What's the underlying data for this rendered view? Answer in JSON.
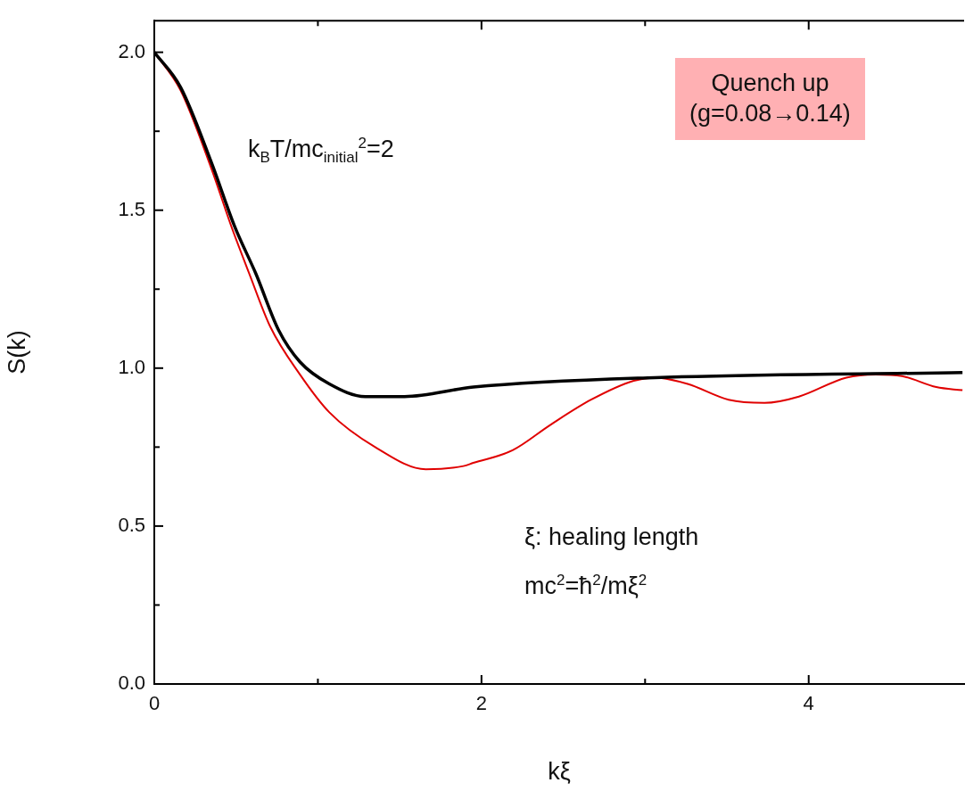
{
  "chart_data": {
    "type": "line",
    "xlabel": "kξ",
    "ylabel": "S(k)",
    "xlim": [
      0,
      4.95
    ],
    "ylim": [
      0,
      2.1
    ],
    "xticks": [
      0,
      {
        "value": 1,
        "label": null
      },
      2,
      {
        "value": 3,
        "label": null
      },
      4
    ],
    "yticks": [
      {
        "value": 0,
        "label": "0.0"
      },
      {
        "value": 0.25,
        "label": null
      },
      {
        "value": 0.5,
        "label": "0.5"
      },
      {
        "value": 0.75,
        "label": null
      },
      {
        "value": 1,
        "label": "1.0"
      },
      {
        "value": 1.25,
        "label": null
      },
      {
        "value": 1.5,
        "label": "1.5"
      },
      {
        "value": 1.75,
        "label": null
      },
      {
        "value": 2,
        "label": "2.0"
      }
    ],
    "grid": false,
    "legend": false,
    "marker": "none",
    "line_style": "solid",
    "series": [
      {
        "color": "#000000",
        "x": [
          0,
          0.16,
          0.35,
          0.49,
          0.62,
          0.76,
          0.89,
          1.07,
          1.29,
          1.53,
          1.95,
          3.06,
          4.94
        ],
        "values": [
          2.0,
          1.89,
          1.65,
          1.45,
          1.3,
          1.12,
          1.02,
          0.95,
          0.91,
          0.91,
          0.94,
          0.97,
          0.986
        ]
      },
      {
        "color": "#e00000",
        "x": [
          0,
          0.16,
          0.35,
          0.47,
          0.58,
          0.71,
          0.89,
          1.07,
          1.35,
          1.66,
          1.89,
          1.95,
          2.19,
          2.42,
          2.67,
          2.93,
          3.06,
          3.26,
          3.51,
          3.73,
          3.94,
          4.23,
          4.41,
          4.57,
          4.78,
          4.94
        ],
        "values": [
          2.0,
          1.88,
          1.63,
          1.45,
          1.3,
          1.13,
          0.98,
          0.86,
          0.75,
          0.68,
          0.69,
          0.7,
          0.74,
          0.82,
          0.9,
          0.96,
          0.97,
          0.95,
          0.9,
          0.89,
          0.91,
          0.97,
          0.98,
          0.975,
          0.94,
          0.93
        ]
      }
    ],
    "annotations": [
      "Quench up\n(g=0.08→0.14)",
      "k$_{B}$T/mc$_{initial}$$^{2}$=2",
      "ξ: healing length",
      "mc$^{2}$=ħ$^{2}$/mξ$^{2}$"
    ]
  }
}
